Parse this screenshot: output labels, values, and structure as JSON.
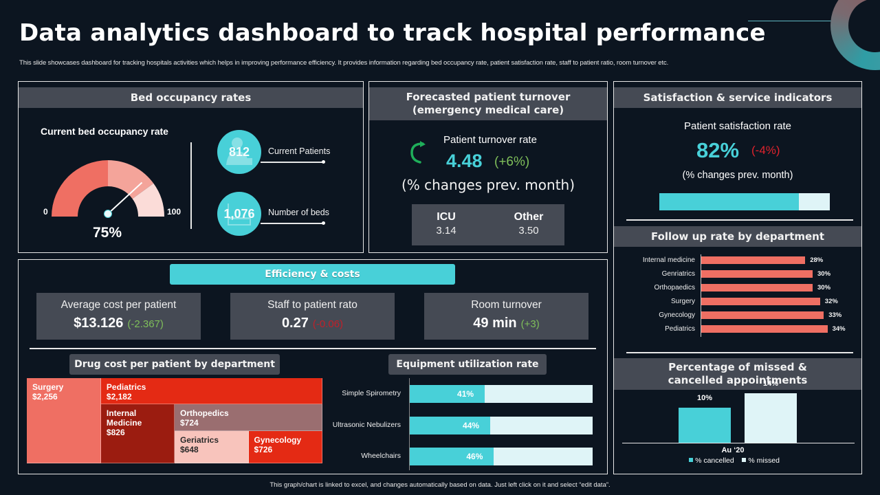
{
  "header": {
    "title": "Data analytics dashboard to track hospital performance",
    "subtitle": "This slide showcases dashboard for tracking hospitals activities which helps in improving performance efficiency. It provides information regarding bed occupancy rate, patient satisfaction rate, staff to patient ratio, room turnover etc."
  },
  "bed_occupancy": {
    "heading": "Bed occupancy rates",
    "gauge_title": "Current bed occupancy rate",
    "gauge_min_label": "0",
    "gauge_max_label": "100",
    "gauge_value": 75,
    "gauge_value_label": "75%",
    "gauge_segments": [
      {
        "from": 0,
        "to": 50,
        "color": "#ef6f63"
      },
      {
        "from": 50,
        "to": 80,
        "color": "#f4a49a"
      },
      {
        "from": 80,
        "to": 100,
        "color": "#fbdcd8"
      }
    ],
    "stats": [
      {
        "value": "812",
        "label": "Current  Patients",
        "icon": "patient-icon"
      },
      {
        "value": "1,076",
        "label": "Number  of  beds",
        "icon": "bed-icon"
      }
    ]
  },
  "turnover": {
    "heading_line1": "Forecasted patient turnover",
    "heading_line2": "(emergency medical care)",
    "label": "Patient turnover  rate",
    "value": "4.48",
    "delta": "(+6%)",
    "note": "(% changes prev. month)",
    "breakdown": [
      {
        "name": "ICU",
        "value": "3.14"
      },
      {
        "name": "Other",
        "value": "3.50"
      }
    ]
  },
  "satisfaction": {
    "heading": "Satisfaction & service indicators",
    "label": "Patient satisfaction rate",
    "value": "82%",
    "delta": "(-4%)",
    "note": "(% changes prev. month)",
    "progress": 0.82
  },
  "efficiency": {
    "heading": "Efficiency & costs",
    "kpis": [
      {
        "label": "Average cost per patient",
        "value": "$13.126",
        "delta": "(-2.367)",
        "delta_color": "#7fbf5a"
      },
      {
        "label": "Staff to patient rato",
        "value": "0.27",
        "delta": "(-0.06)",
        "delta_color": "#c0202a"
      },
      {
        "label": "Room turnover",
        "value": "49 min",
        "delta": "(+3)",
        "delta_color": "#7fbf5a"
      }
    ],
    "drug_cost_heading": "Drug cost per patient by department",
    "equipment_heading": "Equipment utilization rate"
  },
  "followup": {
    "heading": "Follow up rate by department"
  },
  "missed": {
    "heading_line1": "Percentage of missed &",
    "heading_line2": "cancelled appointments"
  },
  "footer": {
    "note": "This graph/chart is linked to excel, and changes automatically based on data. Just left click on it and select “edit data”."
  },
  "chart_data": [
    {
      "id": "followup",
      "type": "bar",
      "orientation": "horizontal",
      "title": "Follow up rate by department",
      "categories": [
        "Internal medicine",
        "Genriatrics",
        "Orthopaedics",
        "Surgery",
        "Gynecology",
        "Pediatrics"
      ],
      "values": [
        28,
        30,
        30,
        32,
        33,
        34
      ],
      "value_labels": [
        "28%",
        "30%",
        "30%",
        "32%",
        "33%",
        "34%"
      ],
      "unit": "%",
      "color": "#ef6f63",
      "xlim": [
        0,
        40
      ],
      "grid": false
    },
    {
      "id": "missed",
      "type": "bar",
      "title": "Percentage of missed & cancelled appointments",
      "categories": [
        "Au ‘20"
      ],
      "series": [
        {
          "name": "% cancelled",
          "values": [
            10
          ],
          "color": "#48d0d8"
        },
        {
          "name": "% missed",
          "values": [
            14
          ],
          "color": "#dff4f7"
        }
      ],
      "value_labels": [
        "10%",
        "14%"
      ],
      "ylim": [
        0,
        16
      ],
      "legend": "bottom",
      "grid": false
    },
    {
      "id": "equipment",
      "type": "bar",
      "orientation": "horizontal",
      "stacked_to": 100,
      "title": "Equipment utilization rate",
      "categories": [
        "Simple Spirometry",
        "Ultrasonic Nebulizers",
        "Wheelchairs"
      ],
      "values": [
        41,
        44,
        46
      ],
      "value_labels": [
        "41%",
        "44%",
        "46%"
      ],
      "xlim": [
        0,
        100
      ],
      "colors": {
        "fill": "#48d0d8",
        "remainder": "#dff4f7"
      },
      "grid": false
    },
    {
      "id": "drug_cost",
      "type": "treemap",
      "title": "Drug cost per patient by department",
      "items": [
        {
          "name": "Surgery",
          "value": 2256,
          "label": "$2,256",
          "color": "#ef6f63",
          "text_color": "#ffffff"
        },
        {
          "name": "Pediatrics",
          "value": 2182,
          "label": "$2,182",
          "color": "#e42a14",
          "text_color": "#ffffff"
        },
        {
          "name": "Internal Medicine",
          "value": 826,
          "label": "$826",
          "color": "#9b1c10",
          "text_color": "#ffffff"
        },
        {
          "name": "Orthopedics",
          "value": 724,
          "label": "$724",
          "color": "#9a6e70",
          "text_color": "#ffffff"
        },
        {
          "name": "Geriatrics",
          "value": 648,
          "label": "$648",
          "color": "#f8c4bc",
          "text_color": "#2a2a2a"
        },
        {
          "name": "Gynecology",
          "value": 726,
          "label": "$726",
          "color": "#e42a14",
          "text_color": "#ffffff"
        }
      ]
    }
  ]
}
